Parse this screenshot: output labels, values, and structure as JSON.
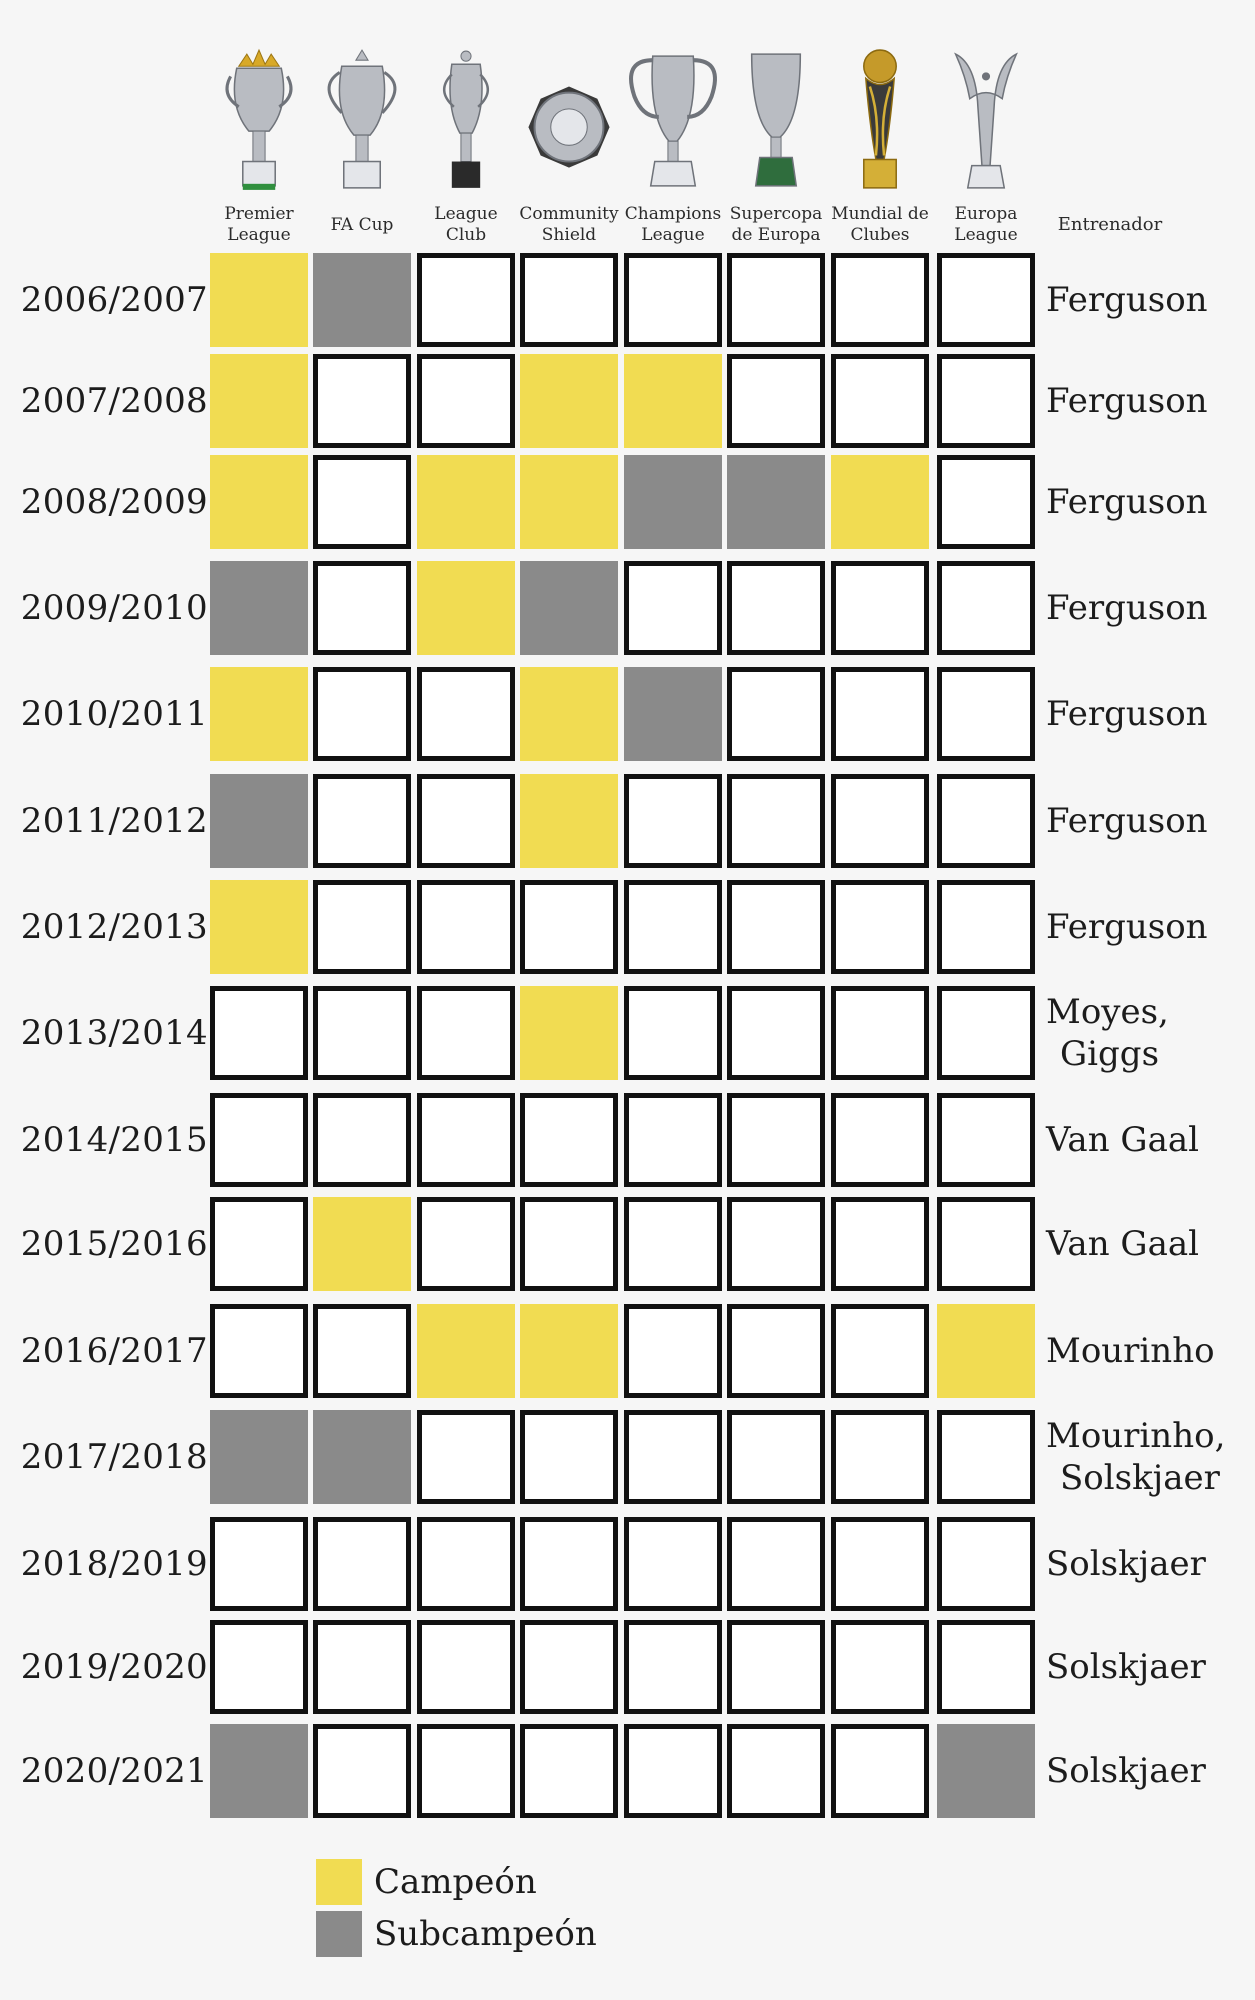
{
  "chart_data": {
    "type": "table",
    "columns": [
      {
        "label": "Premier\nLeague",
        "icon": "premier-league-trophy-icon"
      },
      {
        "label": "FA Cup",
        "icon": "fa-cup-trophy-icon"
      },
      {
        "label": "League\nClub",
        "icon": "league-cup-trophy-icon"
      },
      {
        "label": "Community\nShield",
        "icon": "community-shield-trophy-icon"
      },
      {
        "label": "Champions\nLeague",
        "icon": "champions-league-trophy-icon"
      },
      {
        "label": "Supercopa\nde Europa",
        "icon": "uefa-super-cup-trophy-icon"
      },
      {
        "label": "Mundial de\nClubes",
        "icon": "club-world-cup-trophy-icon"
      },
      {
        "label": "Europa\nLeague",
        "icon": "europa-league-trophy-icon"
      }
    ],
    "coach_header": "Entrenador",
    "rows": [
      {
        "season": "2006/2007",
        "coach": "Ferguson",
        "results": [
          "C",
          "S",
          "",
          "",
          "",
          "",
          "",
          ""
        ]
      },
      {
        "season": "2007/2008",
        "coach": "Ferguson",
        "results": [
          "C",
          "",
          "",
          "C",
          "C",
          "",
          "",
          ""
        ]
      },
      {
        "season": "2008/2009",
        "coach": "Ferguson",
        "results": [
          "C",
          "",
          "C",
          "C",
          "S",
          "S",
          "C",
          ""
        ]
      },
      {
        "season": "2009/2010",
        "coach": "Ferguson",
        "results": [
          "S",
          "",
          "C",
          "S",
          "",
          "",
          "",
          ""
        ]
      },
      {
        "season": "2010/2011",
        "coach": "Ferguson",
        "results": [
          "C",
          "",
          "",
          "C",
          "S",
          "",
          "",
          ""
        ]
      },
      {
        "season": "2011/2012",
        "coach": "Ferguson",
        "results": [
          "S",
          "",
          "",
          "C",
          "",
          "",
          "",
          ""
        ]
      },
      {
        "season": "2012/2013",
        "coach": "Ferguson",
        "results": [
          "C",
          "",
          "",
          "",
          "",
          "",
          "",
          ""
        ]
      },
      {
        "season": "2013/2014",
        "coach": "Moyes,\nGiggs",
        "results": [
          "",
          "",
          "",
          "C",
          "",
          "",
          "",
          ""
        ]
      },
      {
        "season": "2014/2015",
        "coach": "Van Gaal",
        "results": [
          "",
          "",
          "",
          "",
          "",
          "",
          "",
          ""
        ]
      },
      {
        "season": "2015/2016",
        "coach": "Van Gaal",
        "results": [
          "",
          "C",
          "",
          "",
          "",
          "",
          "",
          ""
        ]
      },
      {
        "season": "2016/2017",
        "coach": "Mourinho",
        "results": [
          "",
          "",
          "C",
          "C",
          "",
          "",
          "",
          "C"
        ]
      },
      {
        "season": "2017/2018",
        "coach": "Mourinho,\nSolskjaer",
        "results": [
          "S",
          "S",
          "",
          "",
          "",
          "",
          "",
          ""
        ]
      },
      {
        "season": "2018/2019",
        "coach": "Solskjaer",
        "results": [
          "",
          "",
          "",
          "",
          "",
          "",
          "",
          ""
        ]
      },
      {
        "season": "2019/2020",
        "coach": "Solskjaer",
        "results": [
          "",
          "",
          "",
          "",
          "",
          "",
          "",
          ""
        ]
      },
      {
        "season": "2020/2021",
        "coach": "Solskjaer",
        "results": [
          "S",
          "",
          "",
          "",
          "",
          "",
          "",
          "S"
        ]
      }
    ],
    "legend": [
      {
        "code": "C",
        "label": "Campeón",
        "color": "#f1dc52"
      },
      {
        "code": "S",
        "label": "Subcampeón",
        "color": "#8a8a8a"
      }
    ],
    "empty_color": "#ffffff"
  }
}
